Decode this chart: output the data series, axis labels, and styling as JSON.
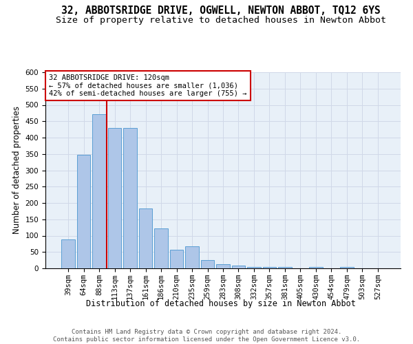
{
  "title": "32, ABBOTSRIDGE DRIVE, OGWELL, NEWTON ABBOT, TQ12 6YS",
  "subtitle": "Size of property relative to detached houses in Newton Abbot",
  "xlabel": "Distribution of detached houses by size in Newton Abbot",
  "ylabel": "Number of detached properties",
  "footer_line1": "Contains HM Land Registry data © Crown copyright and database right 2024.",
  "footer_line2": "Contains public sector information licensed under the Open Government Licence v3.0.",
  "bin_labels": [
    "39sqm",
    "64sqm",
    "88sqm",
    "113sqm",
    "137sqm",
    "161sqm",
    "186sqm",
    "210sqm",
    "235sqm",
    "259sqm",
    "283sqm",
    "308sqm",
    "332sqm",
    "357sqm",
    "381sqm",
    "405sqm",
    "430sqm",
    "454sqm",
    "479sqm",
    "503sqm",
    "527sqm"
  ],
  "bar_values": [
    88,
    348,
    472,
    430,
    430,
    183,
    122,
    57,
    67,
    25,
    13,
    9,
    5,
    5,
    5,
    0,
    5,
    0,
    5,
    0,
    0
  ],
  "bar_color": "#aec6e8",
  "bar_edge_color": "#5a9fd4",
  "vline_color": "#cc0000",
  "vline_x_index": 3,
  "annotation_line1": "32 ABBOTSRIDGE DRIVE: 120sqm",
  "annotation_line2": "← 57% of detached houses are smaller (1,036)",
  "annotation_line3": "42% of semi-detached houses are larger (755) →",
  "annotation_box_color": "#ffffff",
  "annotation_box_edge_color": "#cc0000",
  "ylim": [
    0,
    600
  ],
  "yticks": [
    0,
    50,
    100,
    150,
    200,
    250,
    300,
    350,
    400,
    450,
    500,
    550,
    600
  ],
  "grid_color": "#d0d8e8",
  "bg_color": "#e8f0f8",
  "title_fontsize": 10.5,
  "subtitle_fontsize": 9.5,
  "axis_label_fontsize": 8.5,
  "tick_fontsize": 7.5,
  "footer_fontsize": 6.5
}
